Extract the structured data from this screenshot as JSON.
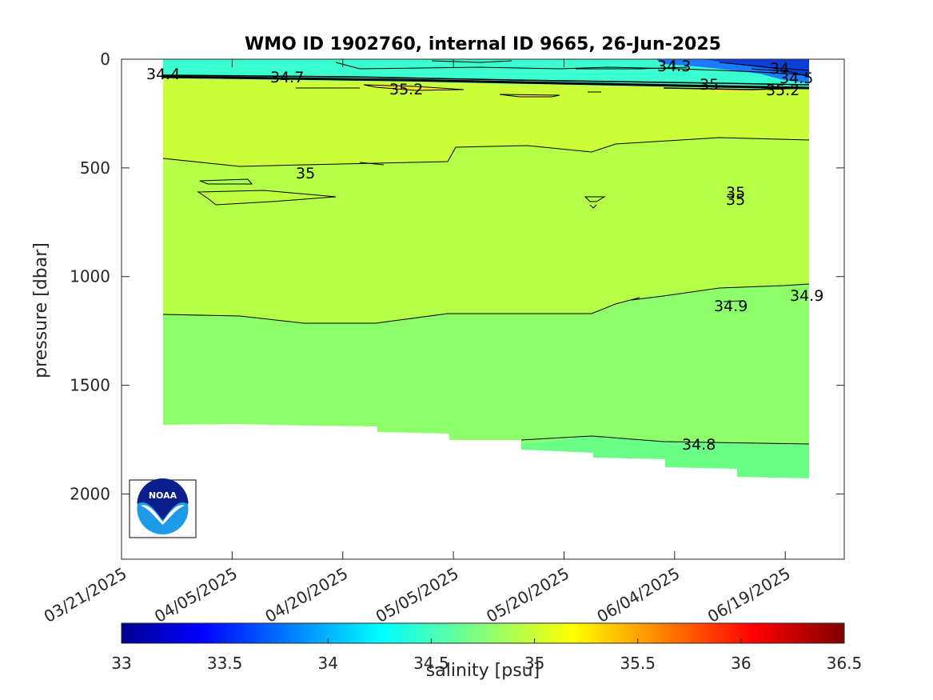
{
  "chart_data": {
    "type": "heatmap",
    "title": "WMO ID 1902760, internal ID 9665, 26-Jun-2025",
    "ylabel": "pressure [dbar]",
    "ylim": [
      0,
      2300
    ],
    "y_reversed": true,
    "yticks": [
      0,
      500,
      1000,
      1500,
      2000
    ],
    "xticks": [
      "03/21/2025",
      "04/05/2025",
      "04/20/2025",
      "05/05/2025",
      "05/20/2025",
      "06/04/2025",
      "06/19/2025"
    ],
    "xlim": [
      "03/21/2025",
      "06/27/2025"
    ],
    "colorbar": {
      "label": "salinity [psu]",
      "range": [
        33,
        36.5
      ],
      "ticks": [
        "33",
        "33.5",
        "34",
        "34.5",
        "35",
        "35.5",
        "36",
        "36.5"
      ],
      "colormap": "jet"
    },
    "contour_labels": [
      "34.4",
      "34.7",
      "35.2",
      "34.3",
      "34",
      "34.5",
      "35",
      "35.2",
      "35",
      "35",
      "35",
      "34.9",
      "34.9",
      "34.8"
    ],
    "logo": "NOAA",
    "colors": {
      "surface_fresh": "#0a3fd8",
      "surface_layer": "#3affcf",
      "upper_salty": "#ccff3a",
      "intermediate": "#b6ff48",
      "deep": "#8cff6a",
      "deepest": "#6cff88"
    }
  }
}
